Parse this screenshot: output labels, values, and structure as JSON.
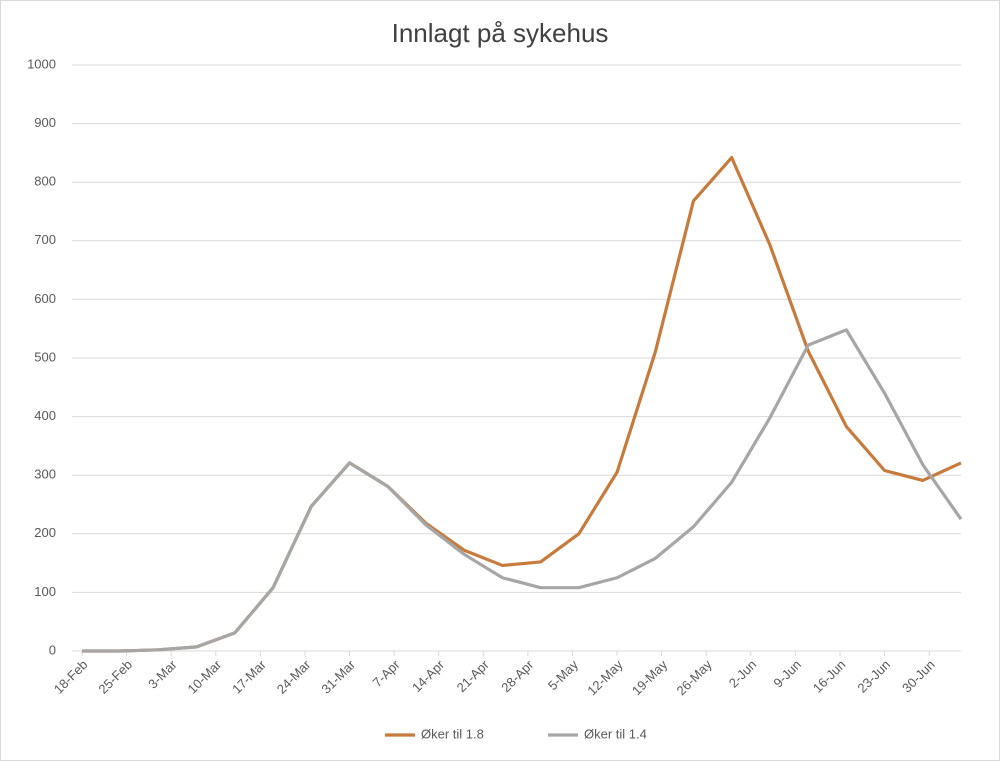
{
  "chart_data": {
    "type": "line",
    "title": "Innlagt på sykehus",
    "x": [
      0,
      6,
      12,
      18,
      24,
      30,
      36,
      42,
      48,
      54,
      60,
      66,
      72,
      78,
      84,
      90,
      96,
      102,
      108,
      114,
      120,
      126,
      132,
      138
    ],
    "series": [
      {
        "name": "Øker til 1.8",
        "color": "#c67b3d",
        "values": [
          0,
          0,
          2,
          7,
          31,
          108,
          247,
          321,
          281,
          218,
          172,
          146,
          152,
          200,
          305,
          510,
          768,
          842,
          693,
          512,
          383,
          308,
          291,
          321
        ]
      },
      {
        "name": "Øker til 1.4",
        "color": "#a6a6a6",
        "values": [
          0,
          0,
          2,
          7,
          31,
          108,
          247,
          321,
          281,
          215,
          165,
          125,
          108,
          108,
          125,
          158,
          212,
          288,
          398,
          522,
          548,
          440,
          318,
          225
        ]
      }
    ],
    "xlim": [
      0,
      138
    ],
    "xticks": [
      {
        "value": 0,
        "label": "18-Feb"
      },
      {
        "value": 7,
        "label": "25-Feb"
      },
      {
        "value": 14,
        "label": "3-Mar"
      },
      {
        "value": 21,
        "label": "10-Mar"
      },
      {
        "value": 28,
        "label": "17-Mar"
      },
      {
        "value": 35,
        "label": "24-Mar"
      },
      {
        "value": 42,
        "label": "31-Mar"
      },
      {
        "value": 49,
        "label": "7-Apr"
      },
      {
        "value": 56,
        "label": "14-Apr"
      },
      {
        "value": 63,
        "label": "21-Apr"
      },
      {
        "value": 70,
        "label": "28-Apr"
      },
      {
        "value": 77,
        "label": "5-May"
      },
      {
        "value": 84,
        "label": "12-May"
      },
      {
        "value": 91,
        "label": "19-May"
      },
      {
        "value": 98,
        "label": "26-May"
      },
      {
        "value": 105,
        "label": "2-Jun"
      },
      {
        "value": 112,
        "label": "9-Jun"
      },
      {
        "value": 119,
        "label": "16-Jun"
      },
      {
        "value": 126,
        "label": "23-Jun"
      },
      {
        "value": 133,
        "label": "30-Jun"
      }
    ],
    "ylim": [
      0,
      1000
    ],
    "yticks": [
      0,
      100,
      200,
      300,
      400,
      500,
      600,
      700,
      800,
      900,
      1000
    ],
    "grid": true,
    "legend": "bottom"
  }
}
